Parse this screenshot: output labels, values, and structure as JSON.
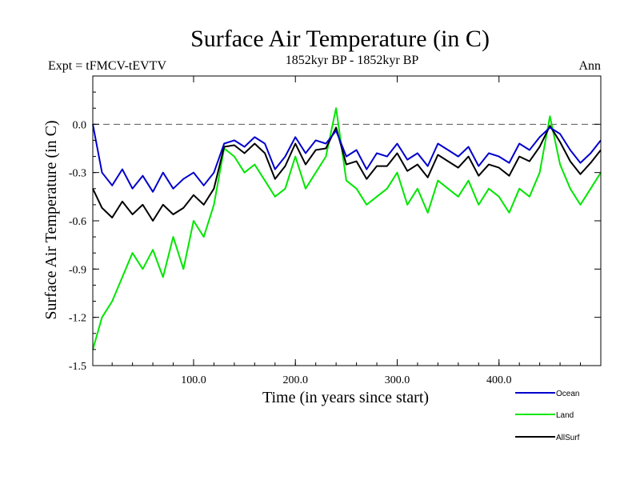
{
  "chart_data": {
    "type": "line",
    "title": "Surface Air Temperature (in C)",
    "subtitle_left": "Expt = tFMCV-tEVTV",
    "subtitle_center": "1852kyr BP - 1852kyr BP",
    "subtitle_right": "Ann",
    "xlabel": "Time (in years since start)",
    "ylabel": "Surface Air Temperature (in C)",
    "xlim": [
      1,
      500
    ],
    "ylim": [
      -1.5,
      0.3
    ],
    "x_ticks": [
      100,
      200,
      300,
      400
    ],
    "x_tick_labels": [
      "100.0",
      "200.0",
      "300.0",
      "400.0"
    ],
    "y_ticks": [
      -1.5,
      -1.2,
      -0.9,
      -0.6,
      -0.3,
      0.0
    ],
    "y_tick_labels": [
      "-1.5",
      "-1.2",
      "-0.9",
      "-0.6",
      "-0.3",
      "0.0"
    ],
    "reference_line": 0.0,
    "legend": [
      "Ocean",
      "Land",
      "AllSurf"
    ],
    "series": [
      {
        "name": "Ocean",
        "color": "#0000cc",
        "x": [
          1,
          10,
          20,
          30,
          40,
          50,
          60,
          70,
          80,
          90,
          100,
          110,
          120,
          130,
          140,
          150,
          160,
          170,
          180,
          190,
          200,
          210,
          220,
          230,
          240,
          250,
          260,
          270,
          280,
          290,
          300,
          310,
          320,
          330,
          340,
          350,
          360,
          370,
          380,
          390,
          400,
          410,
          420,
          430,
          440,
          450,
          460,
          470,
          480,
          490,
          500
        ],
        "values": [
          0.0,
          -0.3,
          -0.38,
          -0.28,
          -0.4,
          -0.32,
          -0.42,
          -0.3,
          -0.4,
          -0.34,
          -0.3,
          -0.38,
          -0.3,
          -0.12,
          -0.1,
          -0.14,
          -0.08,
          -0.12,
          -0.28,
          -0.2,
          -0.08,
          -0.18,
          -0.1,
          -0.12,
          -0.04,
          -0.2,
          -0.16,
          -0.28,
          -0.18,
          -0.2,
          -0.12,
          -0.22,
          -0.18,
          -0.26,
          -0.12,
          -0.16,
          -0.2,
          -0.14,
          -0.26,
          -0.18,
          -0.2,
          -0.24,
          -0.12,
          -0.16,
          -0.08,
          -0.02,
          -0.06,
          -0.16,
          -0.24,
          -0.18,
          -0.1
        ]
      },
      {
        "name": "Land",
        "color": "#00e600",
        "x": [
          1,
          10,
          20,
          30,
          40,
          50,
          60,
          70,
          80,
          90,
          100,
          110,
          120,
          130,
          140,
          150,
          160,
          170,
          180,
          190,
          200,
          210,
          220,
          230,
          240,
          250,
          260,
          270,
          280,
          290,
          300,
          310,
          320,
          330,
          340,
          350,
          360,
          370,
          380,
          390,
          400,
          410,
          420,
          430,
          440,
          450,
          460,
          470,
          480,
          490,
          500
        ],
        "values": [
          -1.4,
          -1.2,
          -1.1,
          -0.95,
          -0.8,
          -0.9,
          -0.78,
          -0.95,
          -0.7,
          -0.9,
          -0.6,
          -0.7,
          -0.5,
          -0.15,
          -0.2,
          -0.3,
          -0.25,
          -0.35,
          -0.45,
          -0.4,
          -0.2,
          -0.4,
          -0.3,
          -0.2,
          0.1,
          -0.35,
          -0.4,
          -0.5,
          -0.45,
          -0.4,
          -0.3,
          -0.5,
          -0.4,
          -0.55,
          -0.35,
          -0.4,
          -0.45,
          -0.35,
          -0.5,
          -0.4,
          -0.45,
          -0.55,
          -0.4,
          -0.45,
          -0.3,
          0.05,
          -0.25,
          -0.4,
          -0.5,
          -0.4,
          -0.3
        ]
      },
      {
        "name": "AllSurf",
        "color": "#000000",
        "x": [
          1,
          10,
          20,
          30,
          40,
          50,
          60,
          70,
          80,
          90,
          100,
          110,
          120,
          130,
          140,
          150,
          160,
          170,
          180,
          190,
          200,
          210,
          220,
          230,
          240,
          250,
          260,
          270,
          280,
          290,
          300,
          310,
          320,
          330,
          340,
          350,
          360,
          370,
          380,
          390,
          400,
          410,
          420,
          430,
          440,
          450,
          460,
          470,
          480,
          490,
          500
        ],
        "values": [
          -0.4,
          -0.52,
          -0.58,
          -0.48,
          -0.56,
          -0.5,
          -0.6,
          -0.5,
          -0.56,
          -0.52,
          -0.44,
          -0.5,
          -0.4,
          -0.14,
          -0.13,
          -0.18,
          -0.12,
          -0.18,
          -0.34,
          -0.26,
          -0.12,
          -0.25,
          -0.16,
          -0.15,
          -0.02,
          -0.25,
          -0.23,
          -0.34,
          -0.26,
          -0.26,
          -0.18,
          -0.29,
          -0.25,
          -0.33,
          -0.19,
          -0.23,
          -0.27,
          -0.2,
          -0.32,
          -0.25,
          -0.27,
          -0.32,
          -0.2,
          -0.23,
          -0.14,
          -0.01,
          -0.11,
          -0.23,
          -0.31,
          -0.24,
          -0.16
        ]
      }
    ]
  }
}
